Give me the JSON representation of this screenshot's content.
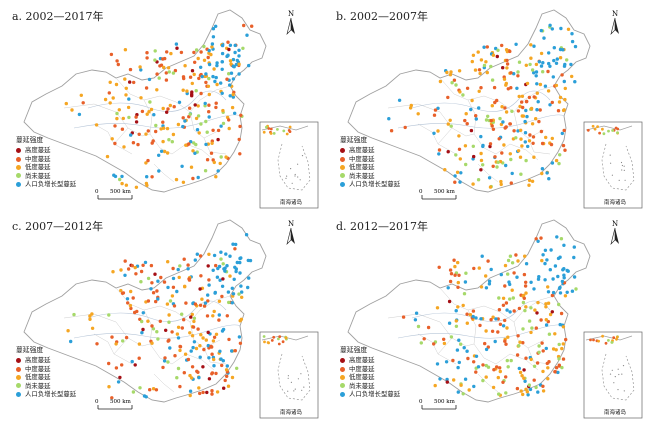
{
  "colors": {
    "high": "#a50f15",
    "moderate": "#e8602a",
    "low": "#f5a623",
    "not_yet": "#a6d96a",
    "pop_decline": "#2b9fd8",
    "border": "#a0a0a0",
    "province": "#cfcfcf",
    "river": "#b7c6d8"
  },
  "icons": [
    "north-arrow-icon"
  ],
  "north_label": "N",
  "scale": {
    "zero": "0",
    "distance": "500 km"
  },
  "legend_title_a": "蔓延强度",
  "legend_title_b": "蔓延强度",
  "legend_items_a": [
    {
      "key": "high",
      "label": "高度蔓延"
    },
    {
      "key": "moderate",
      "label": "中度蔓延"
    },
    {
      "key": "low",
      "label": "低度蔓延"
    },
    {
      "key": "not_yet",
      "label": "尚未蔓延"
    },
    {
      "key": "pop_decline",
      "label": "人口负增长型蔓延"
    }
  ],
  "legend_items_b": [
    {
      "key": "high",
      "label": "高度蔓延"
    },
    {
      "key": "moderate",
      "label": "中度蔓延"
    },
    {
      "key": "low",
      "label": "低度蔓延"
    },
    {
      "key": "not_yet",
      "label": "尚未蔓延"
    },
    {
      "key": "pop_decline",
      "label": "人口负增长型蔓延"
    }
  ],
  "inset_label_a": "南海诸岛",
  "inset_label_b": "南海诸岛",
  "panels": [
    {
      "id": "a",
      "title": "a. 2002—2017年",
      "legend": "a",
      "inset": "a"
    },
    {
      "id": "b",
      "title": "b. 2002—2007年",
      "legend": "b",
      "inset": "b"
    },
    {
      "id": "c",
      "title": "c. 2007—2012年",
      "legend": "a",
      "inset": "a"
    },
    {
      "id": "d",
      "title": "d. 2012—2017年",
      "legend": "b",
      "inset": "b"
    }
  ]
}
